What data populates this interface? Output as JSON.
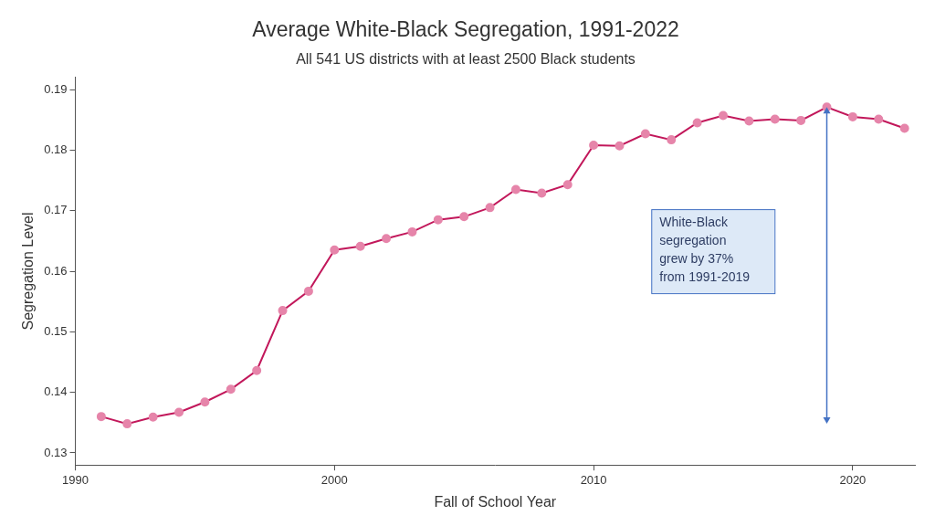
{
  "chart_data": {
    "type": "line",
    "title": "Average White-Black Segregation, 1991-2022",
    "subtitle": "All 541 US districts with at least 2500 Black students",
    "x_label": "Fall of School Year",
    "y_label": "Segregation Level",
    "x": [
      1991,
      1992,
      1993,
      1994,
      1995,
      1996,
      1997,
      1998,
      1999,
      2000,
      2001,
      2002,
      2003,
      2004,
      2005,
      2006,
      2007,
      2008,
      2009,
      2010,
      2011,
      2012,
      2013,
      2014,
      2015,
      2016,
      2017,
      2018,
      2019,
      2020,
      2021,
      2022
    ],
    "values": [
      0.136,
      0.1348,
      0.1359,
      0.1367,
      0.1384,
      0.1405,
      0.1436,
      0.1535,
      0.1567,
      0.1635,
      0.1641,
      0.1654,
      0.1665,
      0.1685,
      0.169,
      0.1705,
      0.1735,
      0.1729,
      0.1743,
      0.1808,
      0.1807,
      0.1827,
      0.1817,
      0.1845,
      0.1857,
      0.1848,
      0.1851,
      0.1849,
      0.1871,
      0.1855,
      0.1851,
      0.1836
    ],
    "color": "#c2185b",
    "marker": "circle",
    "line_style": "solid",
    "xlim": [
      1990,
      2022.4
    ],
    "xticks": [
      1990,
      2000,
      2010,
      2020
    ],
    "ylim": [
      0.128,
      0.192
    ],
    "yticks": [
      0.13,
      0.14,
      0.15,
      0.16,
      0.17,
      0.18,
      0.19
    ],
    "grid": false,
    "annotations": [
      {
        "text": [
          "White-Black",
          "segregation",
          "grew by 37%",
          "from 1991-2019"
        ],
        "arrow": {
          "x": 2019,
          "y": [
            0.1871,
            0.1348
          ]
        }
      }
    ]
  }
}
